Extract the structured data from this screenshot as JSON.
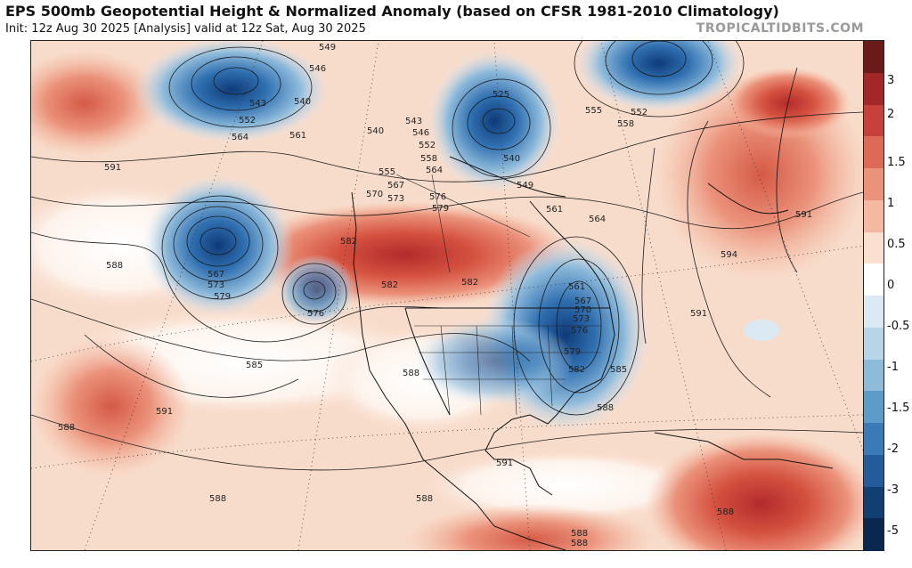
{
  "header": {
    "title": "EPS 500mb Geopotential Height & Normalized Anomaly (based on CFSR 1981-2010 Climatology)",
    "subtitle": "Init: 12z Aug 30 2025   [Analysis]   valid at 12z Sat, Aug 30 2025",
    "brand": "TROPICALTIDBITS.COM"
  },
  "colorbar": {
    "labels": [
      "3",
      "2",
      "1.5",
      "1",
      "0.5",
      "0",
      "-0.5",
      "-1",
      "-1.5",
      "-2",
      "-3",
      "-5"
    ],
    "colors": [
      "#6b1a1a",
      "#a12729",
      "#c8403b",
      "#dd6a57",
      "#eb927b",
      "#f4b9a0",
      "#fbe0d2",
      "#ffffff",
      "#dbe9f3",
      "#b7d4e8",
      "#8fbbdb",
      "#5d9cc9",
      "#3a7bb7",
      "#245c9a",
      "#123f72",
      "#0a2750"
    ]
  },
  "map": {
    "height_labels": [
      "549",
      "546",
      "543",
      "540",
      "552",
      "564",
      "561",
      "540",
      "543",
      "546",
      "552",
      "555",
      "558",
      "564",
      "567",
      "570",
      "573",
      "576",
      "579",
      "525",
      "540",
      "549",
      "555",
      "552",
      "558",
      "561",
      "564",
      "591",
      "591",
      "594",
      "591",
      "588",
      "582",
      "582",
      "582",
      "567",
      "573",
      "579",
      "576",
      "585",
      "588",
      "561",
      "567",
      "570",
      "573",
      "576",
      "579",
      "582",
      "585",
      "588",
      "591",
      "588",
      "591",
      "588",
      "588",
      "588",
      "588",
      "588"
    ]
  }
}
